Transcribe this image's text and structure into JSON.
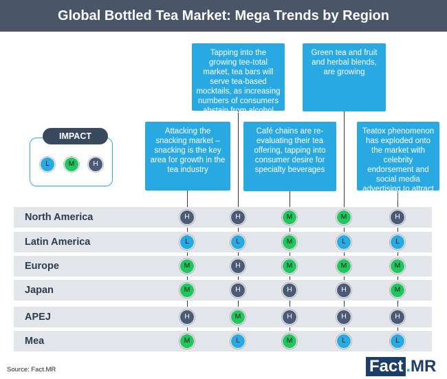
{
  "title": "Global Bottled Tea Market: Mega Trends by Region",
  "legend": {
    "title": "IMPACT",
    "levels": [
      "L",
      "M",
      "H"
    ]
  },
  "trends": [
    "Attacking the snacking market – snacking is the key area for growth in the tea industry",
    "Tapping into the growing tee-total market, tea bars will serve tea-based mocktails, as increasing numbers of consumers abstain from alcohol",
    "Café chains are re-evaluating their tea offering, tapping into consumer desire for specialty beverages",
    "Green tea and fruit and herbal blends, are growing",
    "Teatox phenomenon has exploded onto the market with celebrity endorsement and social media advertising to attract the millennials"
  ],
  "regions": [
    {
      "name": "North America",
      "impacts": [
        "H",
        "H",
        "M",
        "M",
        "H"
      ]
    },
    {
      "name": "Latin America",
      "impacts": [
        "L",
        "L",
        "M",
        "L",
        "L"
      ]
    },
    {
      "name": "Europe",
      "impacts": [
        "M",
        "H",
        "M",
        "M",
        "M"
      ]
    },
    {
      "name": "Japan",
      "impacts": [
        "M",
        "H",
        "H",
        "H",
        "M"
      ]
    },
    {
      "name": "APEJ",
      "impacts": [
        "H",
        "M",
        "H",
        "H",
        "H"
      ]
    },
    {
      "name": "Mea",
      "impacts": [
        "M",
        "L",
        "M",
        "L",
        "L"
      ]
    }
  ],
  "source": "Source: Fact.MR",
  "logo": {
    "part1": "Fact",
    "dot": ".",
    "part2": "MR"
  },
  "colors": {
    "L": "#29a9e1",
    "M": "#22c55e",
    "H": "#4a5a78",
    "header": "#4a5568"
  }
}
